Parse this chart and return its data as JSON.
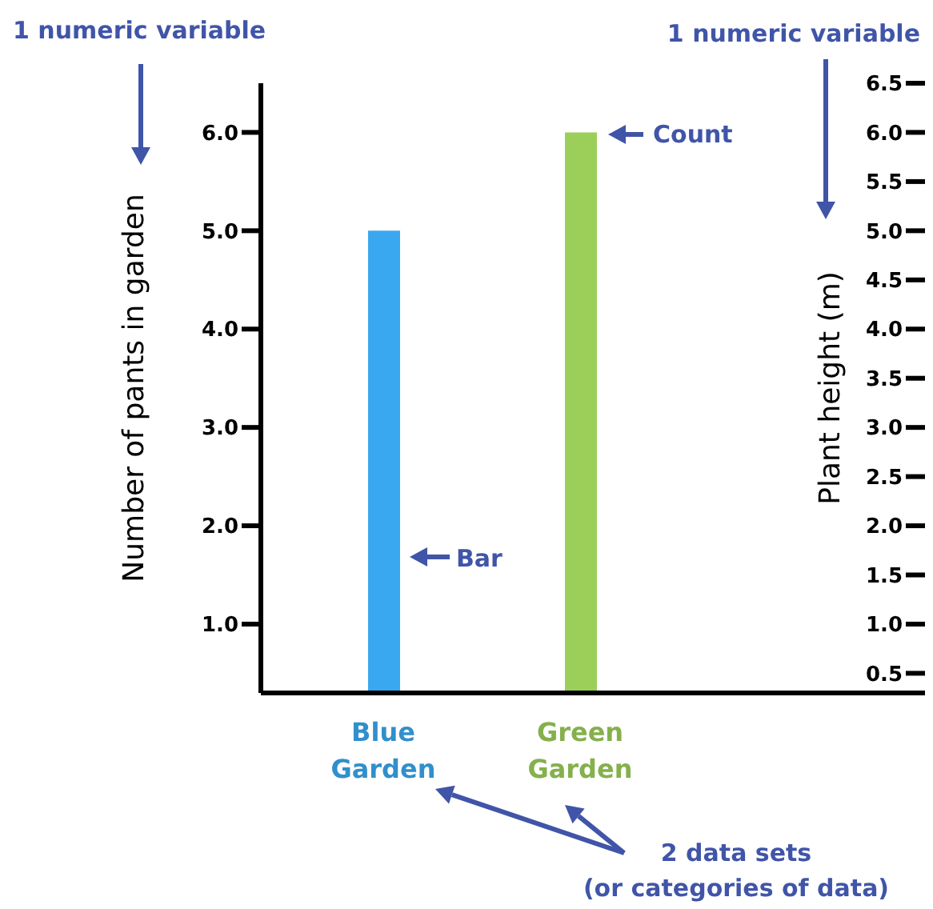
{
  "chart_data": {
    "type": "bar",
    "categories": [
      "Blue Garden",
      "Green Garden"
    ],
    "values": [
      5,
      6
    ],
    "colors": [
      "#3aa8f0",
      "#9ccf5a"
    ],
    "ylabel": "Number of pants in garden",
    "y2label": "Plant height (m)",
    "ylim": [
      0.3,
      6.5
    ],
    "yticks": [
      {
        "value": 1,
        "label": "1.0"
      },
      {
        "value": 2,
        "label": "2.0"
      },
      {
        "value": 3,
        "label": "3.0"
      },
      {
        "value": 4,
        "label": "4.0"
      },
      {
        "value": 5,
        "label": "5.0"
      },
      {
        "value": 6,
        "label": "6.0"
      }
    ],
    "y2lim": [
      0.3,
      6.5
    ],
    "y2ticks": [
      {
        "value": 0.5,
        "label": "0.5"
      },
      {
        "value": 1,
        "label": "1.0"
      },
      {
        "value": 1.5,
        "label": "1.5"
      },
      {
        "value": 2,
        "label": "2.0"
      },
      {
        "value": 2.5,
        "label": "2.5"
      },
      {
        "value": 3,
        "label": "3.0"
      },
      {
        "value": 3.5,
        "label": "3.5"
      },
      {
        "value": 4,
        "label": "4.0"
      },
      {
        "value": 4.5,
        "label": "4.5"
      },
      {
        "value": 5,
        "label": "5.0"
      },
      {
        "value": 5.5,
        "label": "5.5"
      },
      {
        "value": 6,
        "label": "6.0"
      },
      {
        "value": 6.5,
        "label": "6.5"
      }
    ],
    "annotations": [
      "1 numeric variable",
      "1 numeric variable",
      "Count",
      "Bar",
      "2 data sets\n(or categories of data)"
    ],
    "grid": false,
    "legend": false
  }
}
